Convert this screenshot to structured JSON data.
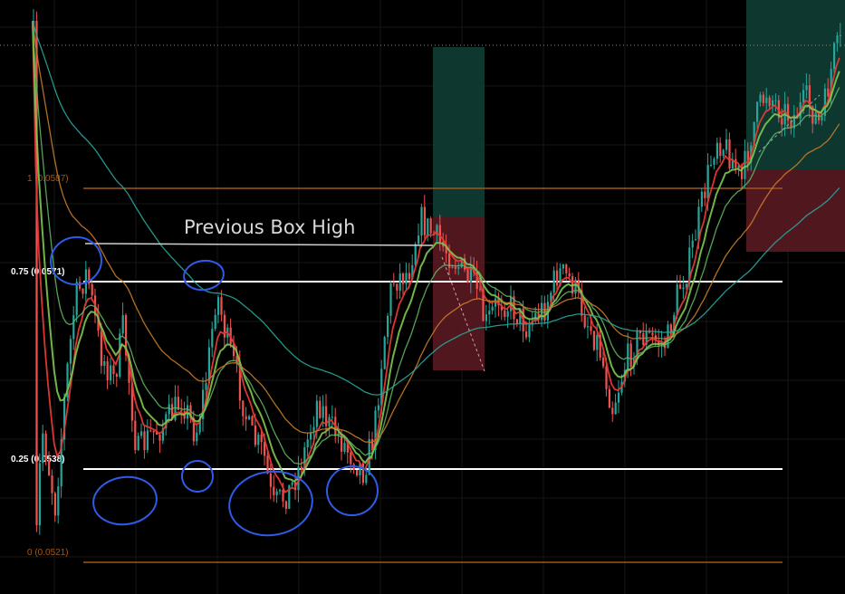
{
  "chart_data": {
    "type": "candlestick",
    "grid": true,
    "y_scale": "linear",
    "price_range": [
      0.0517,
      0.0602
    ],
    "fib_levels": [
      {
        "label": "1 (0.0587)",
        "value": 0.0587,
        "color": "#a0571b"
      },
      {
        "label": "0.75 (0.0571)",
        "value": 0.0571,
        "color": "#ffffff"
      },
      {
        "label": "0.25 (0.0538)",
        "value": 0.0538,
        "color": "#ffffff"
      },
      {
        "label": "0 (0.0521)",
        "value": 0.0521,
        "color": "#a0571b"
      }
    ],
    "annotations": [
      {
        "text": "Previous Box High",
        "price": 0.0578
      }
    ],
    "candle_colors": {
      "up": "#26a69a",
      "down": "#ef5350"
    },
    "ema_colors": [
      "#e53935",
      "#7ec850",
      "#5fb360",
      "#c77a2a",
      "#26a69a"
    ]
  }
}
